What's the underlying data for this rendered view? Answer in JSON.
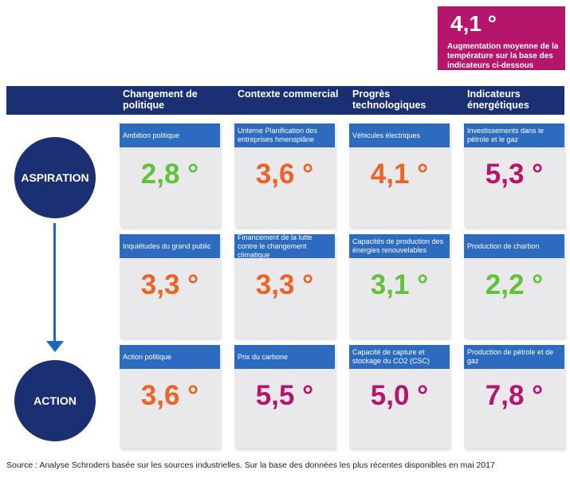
{
  "summary": {
    "value": "4,1 °",
    "description": "Augmentation moyenne de la température sur la base des indicateurs ci-dessous"
  },
  "colors": {
    "navy": "#1b2f73",
    "blue": "#2d6bc0",
    "green": "#5fc23a",
    "orange": "#ee6224",
    "magenta": "#b5156a",
    "arrow": "#1a6bbf"
  },
  "columns": [
    "Changement de politique",
    "Contexte commercial",
    "Progrès technologiques",
    "Indicateurs énergétiques"
  ],
  "rows": [
    "ASPIRATION",
    "",
    "ACTION"
  ],
  "cards": [
    [
      {
        "label": "Ambition politique",
        "value": "2,8 °",
        "color": "#5fc23a"
      },
      {
        "label": "Unterne Planification des entreprises hmensplâne",
        "value": "3,6 °",
        "color": "#ee6224"
      },
      {
        "label": "Véhicules électriques",
        "value": "4,1 °",
        "color": "#ee6224"
      },
      {
        "label": "Investissements dans le pétrole et le gaz",
        "value": "5,3 °",
        "color": "#b5156a"
      }
    ],
    [
      {
        "label": "Inquiétudes du grand public",
        "value": "3,3 °",
        "color": "#ee6224"
      },
      {
        "label": "Financement de la lutte contre le changement climatique",
        "value": "3,3 °",
        "color": "#ee6224"
      },
      {
        "label": "Capacités de production des énergies renouvelables",
        "value": "3,1 °",
        "color": "#5fc23a"
      },
      {
        "label": "Production de charbon",
        "value": "2,2 °",
        "color": "#5fc23a"
      }
    ],
    [
      {
        "label": "Action politique",
        "value": "3,6 °",
        "color": "#ee6224"
      },
      {
        "label": "Prix du carbone",
        "value": "5,5 °",
        "color": "#b5156a"
      },
      {
        "label": "Capacité de capture et stockage du CO2 (CSC)",
        "value": "5,0 °",
        "color": "#b5156a"
      },
      {
        "label": "Production de pétrole et de gaz",
        "value": "7,8 °",
        "color": "#b5156a"
      }
    ]
  ],
  "source": "Source : Analyse Schroders basée sur les sources industrielles. Sur la base des données les plus récentes disponibles en mai 2017"
}
